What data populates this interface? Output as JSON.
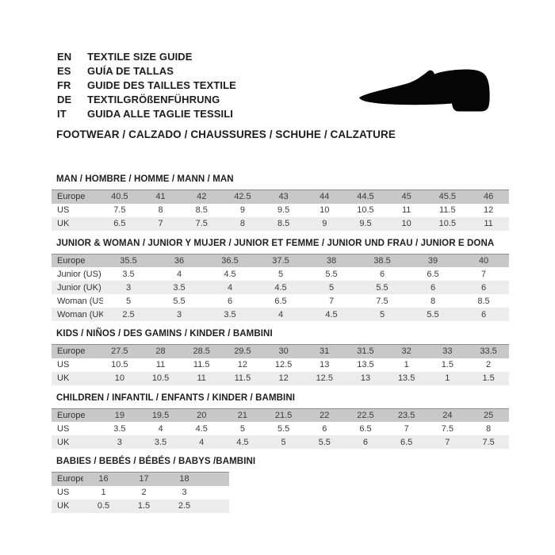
{
  "header": {
    "languages": [
      {
        "code": "EN",
        "text": "TEXTILE SIZE GUIDE"
      },
      {
        "code": "ES",
        "text": "GUÍA DE TALLAS"
      },
      {
        "code": "FR",
        "text": "GUIDE DES TAILLES TEXTILE"
      },
      {
        "code": "DE",
        "text": "TEXTILGRÖßENFÜHRUNG"
      },
      {
        "code": "IT",
        "text": "GUIDA ALLE TAGLIE TESSILI"
      }
    ],
    "category_line": "FOOTWEAR / CALZADO / CHAUSSURES / SCHUHE / CALZATURE",
    "icon": "shoe-icon"
  },
  "colors": {
    "header_row_bg": "#c8c8c8",
    "header_row_border": "#8d8d8d",
    "alt_row_bg": "#ececec",
    "text": "#3c3c3c",
    "shoe": "#050505"
  },
  "tables": [
    {
      "title": "MAN / HOMBRE / HOMME / MANN / MAN",
      "rows": [
        {
          "label": "Europe",
          "values": [
            "40.5",
            "41",
            "42",
            "42.5",
            "43",
            "44",
            "44.5",
            "45",
            "45.5",
            "46"
          ]
        },
        {
          "label": "US",
          "values": [
            "7.5",
            "8",
            "8.5",
            "9",
            "9.5",
            "10",
            "10.5",
            "11",
            "11.5",
            "12"
          ]
        },
        {
          "label": "UK",
          "values": [
            "6.5",
            "7",
            "7.5",
            "8",
            "8.5",
            "9",
            "9.5",
            "10",
            "10.5",
            "11"
          ]
        }
      ]
    },
    {
      "title": "JUNIOR & WOMAN / JUNIOR Y MUJER / JUNIOR ET FEMME / JUNIOR UND FRAU / JUNIOR E DONA",
      "rows": [
        {
          "label": "Europe",
          "values": [
            "35.5",
            "36",
            "36.5",
            "37.5",
            "38",
            "38.5",
            "39",
            "40"
          ]
        },
        {
          "label": "Junior (US)",
          "values": [
            "3.5",
            "4",
            "4.5",
            "5",
            "5.5",
            "6",
            "6.5",
            "7"
          ]
        },
        {
          "label": "Junior (UK)",
          "values": [
            "3",
            "3.5",
            "4",
            "4.5",
            "5",
            "5.5",
            "6",
            "6"
          ]
        },
        {
          "label": "Woman (US)",
          "values": [
            "5",
            "5.5",
            "6",
            "6.5",
            "7",
            "7.5",
            "8",
            "8.5"
          ]
        },
        {
          "label": "Woman (UK)",
          "values": [
            "2.5",
            "3",
            "3.5",
            "4",
            "4.5",
            "5",
            "5.5",
            "6"
          ]
        }
      ]
    },
    {
      "title": "KIDS / NIÑOS / DES GAMINS / KINDER / BAMBINI",
      "rows": [
        {
          "label": "Europe",
          "values": [
            "27.5",
            "28",
            "28.5",
            "29.5",
            "30",
            "31",
            "31.5",
            "32",
            "33",
            "33.5"
          ]
        },
        {
          "label": "US",
          "values": [
            "10.5",
            "11",
            "11.5",
            "12",
            "12.5",
            "13",
            "13.5",
            "1",
            "1.5",
            "2"
          ]
        },
        {
          "label": "UK",
          "values": [
            "10",
            "10.5",
            "11",
            "11.5",
            "12",
            "12.5",
            "13",
            "13.5",
            "1",
            "1.5"
          ]
        }
      ]
    },
    {
      "title": "CHILDREN / INFANTIL / ENFANTS / KINDER / BAMBINI",
      "rows": [
        {
          "label": "Europe",
          "values": [
            "19",
            "19.5",
            "20",
            "21",
            "21.5",
            "22",
            "22.5",
            "23.5",
            "24",
            "25"
          ]
        },
        {
          "label": "US",
          "values": [
            "3.5",
            "4",
            "4.5",
            "5",
            "5.5",
            "6",
            "6.5",
            "7",
            "7.5",
            "8"
          ]
        },
        {
          "label": "UK",
          "values": [
            "3",
            "3.5",
            "4",
            "4.5",
            "5",
            "5.5",
            "6",
            "6.5",
            "7",
            "7.5"
          ]
        }
      ]
    },
    {
      "title": "BABIES / BEBÉS / BÉBÉS / BABYS /BAMBINI",
      "rows": [
        {
          "label": "Europe",
          "values": [
            "16",
            "17",
            "18"
          ]
        },
        {
          "label": "US",
          "values": [
            "1",
            "2",
            "3"
          ]
        },
        {
          "label": "UK",
          "values": [
            "0.5",
            "1.5",
            "2.5"
          ]
        }
      ]
    }
  ]
}
